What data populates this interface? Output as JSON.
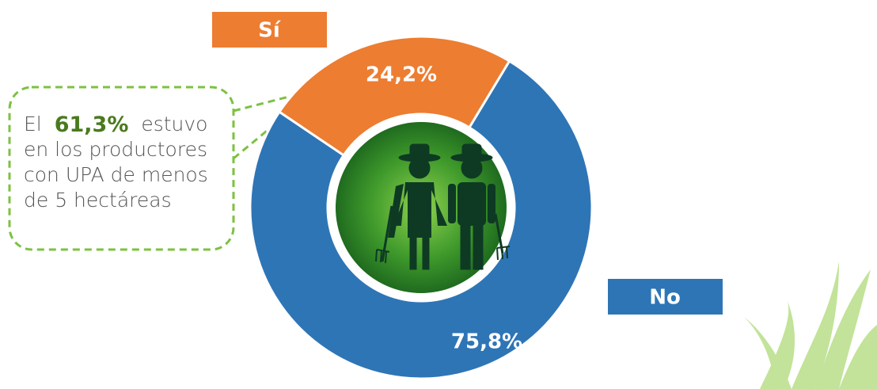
{
  "chart_data": {
    "type": "donut",
    "categories": [
      "Sí",
      "No"
    ],
    "values": [
      24.2,
      75.8
    ],
    "value_labels": [
      "24,2%",
      "75,8%"
    ],
    "colors": [
      "#ed7d31",
      "#2e75b6"
    ],
    "annotation": {
      "prefix": "El",
      "highlight": "61,3%",
      "lines": [
        "estuvo",
        "en los productores",
        "con UPA de menos",
        "de 5 hectáreas"
      ]
    }
  }
}
